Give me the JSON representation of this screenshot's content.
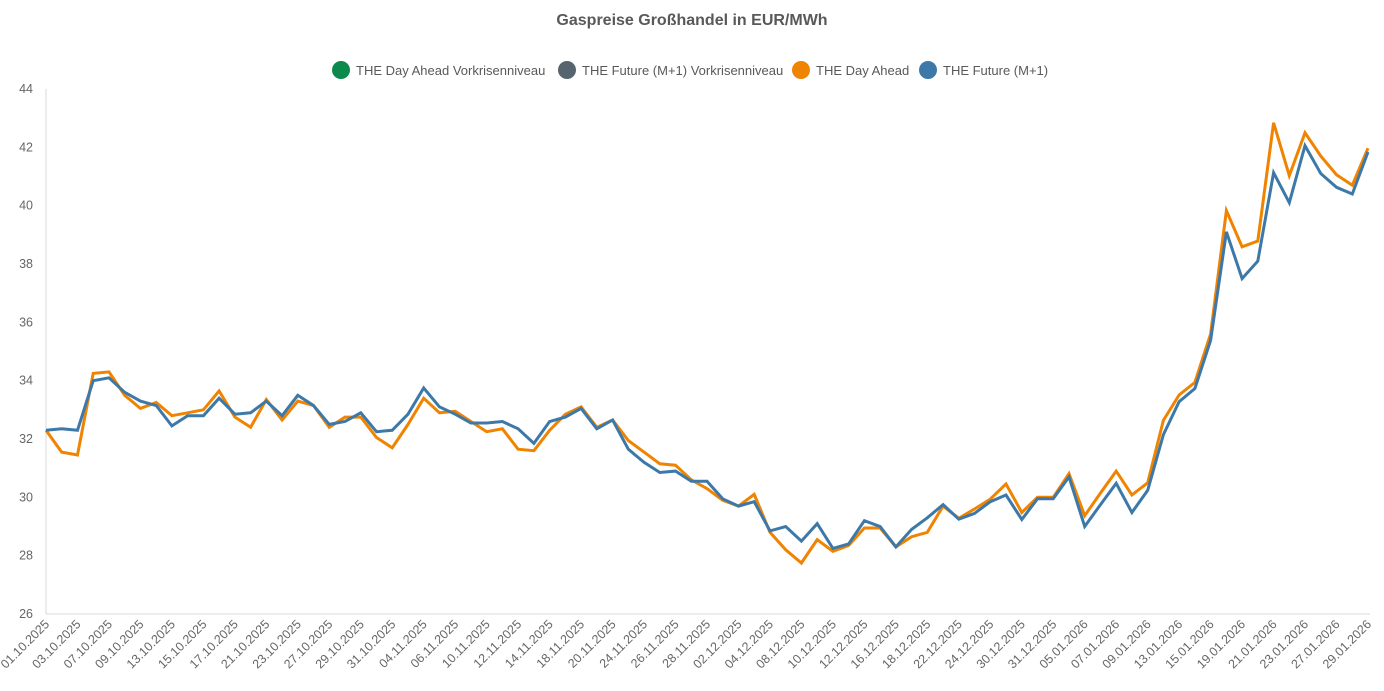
{
  "chart_data": {
    "type": "line",
    "title": "Gaspreise Großhandel in EUR/MWh",
    "xlabel": "",
    "ylabel": "",
    "ylim": [
      26,
      44
    ],
    "yticks": [
      26,
      28,
      30,
      32,
      34,
      36,
      38,
      40,
      42,
      44
    ],
    "grid": false,
    "legend": "top",
    "x_tick_labels": [
      "01.10.2025",
      "03.10.2025",
      "07.10.2025",
      "09.10.2025",
      "13.10.2025",
      "15.10.2025",
      "17.10.2025",
      "21.10.2025",
      "23.10.2025",
      "27.10.2025",
      "29.10.2025",
      "31.10.2025",
      "04.11.2025",
      "06.11.2025",
      "10.11.2025",
      "12.11.2025",
      "14.11.2025",
      "18.11.2025",
      "20.11.2025",
      "24.11.2025",
      "26.11.2025",
      "28.11.2025",
      "02.12.2025",
      "04.12.2025",
      "08.12.2025",
      "10.12.2025",
      "12.12.2025",
      "16.12.2025",
      "18.12.2025",
      "22.12.2025",
      "24.12.2025",
      "30.12.2025",
      "31.12.2025",
      "05.01.2026",
      "07.01.2026",
      "09.01.2026",
      "13.01.2026",
      "15.01.2026",
      "19.01.2026",
      "21.01.2026",
      "23.01.2026",
      "27.01.2026",
      "29.01.2026"
    ],
    "series": [
      {
        "name": "THE Day Ahead Vorkrisenniveau",
        "color": "#0b8a4c",
        "values": []
      },
      {
        "name": "THE Future (M+1) Vorkrisenniveau",
        "color": "#55646e",
        "values": []
      },
      {
        "name": "THE Day Ahead",
        "color": "#f08300",
        "values": [
          32.3,
          31.55,
          31.45,
          34.25,
          34.3,
          33.5,
          33.05,
          33.25,
          32.8,
          32.9,
          33.0,
          33.65,
          32.75,
          32.4,
          33.35,
          32.65,
          33.3,
          33.15,
          32.4,
          32.75,
          32.75,
          32.05,
          31.7,
          32.5,
          33.4,
          32.9,
          32.95,
          32.6,
          32.25,
          32.35,
          31.65,
          31.6,
          32.3,
          32.85,
          33.1,
          32.4,
          32.65,
          31.95,
          31.55,
          31.15,
          31.1,
          30.6,
          30.3,
          29.9,
          29.7,
          30.1,
          28.8,
          28.2,
          27.75,
          28.55,
          28.15,
          28.35,
          28.95,
          28.95,
          28.3,
          28.65,
          28.8,
          29.7,
          29.28,
          29.6,
          29.94,
          30.46,
          29.48,
          30.0,
          30.0,
          30.81,
          29.37,
          30.15,
          30.9,
          30.08,
          30.5,
          32.64,
          33.51,
          33.94,
          35.6,
          39.83,
          38.59,
          38.79,
          42.84,
          41.03,
          42.5,
          41.7,
          41.06,
          40.7,
          41.97
        ]
      },
      {
        "name": "THE Future (M+1)",
        "color": "#3d79a8",
        "values": [
          32.3,
          32.35,
          32.3,
          34.0,
          34.1,
          33.6,
          33.3,
          33.15,
          32.45,
          32.8,
          32.8,
          33.4,
          32.85,
          32.9,
          33.3,
          32.8,
          33.5,
          33.15,
          32.5,
          32.6,
          32.9,
          32.25,
          32.3,
          32.85,
          33.75,
          33.1,
          32.85,
          32.55,
          32.55,
          32.6,
          32.35,
          31.85,
          32.6,
          32.75,
          33.05,
          32.35,
          32.65,
          31.65,
          31.2,
          30.85,
          30.9,
          30.55,
          30.55,
          29.95,
          29.7,
          29.85,
          28.85,
          29.0,
          28.5,
          29.1,
          28.25,
          28.4,
          29.2,
          29.0,
          28.3,
          28.9,
          29.3,
          29.75,
          29.25,
          29.45,
          29.85,
          30.08,
          29.24,
          29.95,
          29.95,
          30.7,
          29.0,
          29.75,
          30.48,
          29.48,
          30.24,
          32.15,
          33.28,
          33.73,
          35.38,
          39.1,
          37.5,
          38.1,
          41.13,
          40.1,
          42.06,
          41.1,
          40.63,
          40.4,
          41.84
        ]
      }
    ]
  }
}
